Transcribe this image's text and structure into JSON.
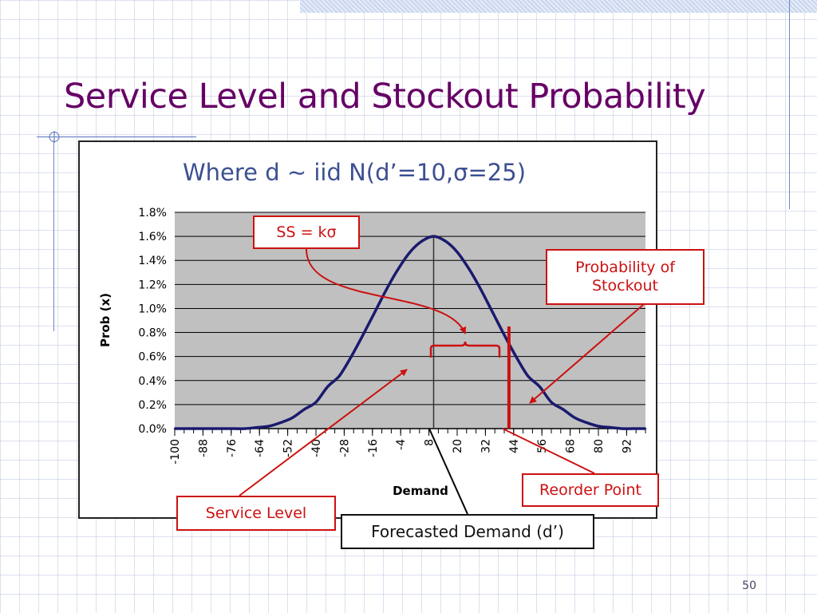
{
  "slide": {
    "title": "Service Level and Stockout Probability",
    "page_number": "50"
  },
  "colors": {
    "title": "#660066",
    "curve": "#1a1a6e",
    "plot_background": "#c0c0c0",
    "callout": "#cc1111",
    "subtitle": "#3d4f91"
  },
  "chart_data": {
    "type": "line",
    "title": "Where d ~ iid N(d’=10,σ=25)",
    "xlabel": "Demand",
    "ylabel": "Prob (x)",
    "distribution": {
      "family": "normal",
      "mean": 10,
      "sd": 25
    },
    "x_tick_labels": [
      "-100",
      "-88",
      "-76",
      "-64",
      "-52",
      "-40",
      "-28",
      "-16",
      "-4",
      "8",
      "20",
      "32",
      "44",
      "56",
      "68",
      "80",
      "92"
    ],
    "y_tick_labels": [
      "1.8%",
      "1.6%",
      "1.4%",
      "1.2%",
      "1.0%",
      "0.8%",
      "0.6%",
      "0.4%",
      "0.2%",
      "0.0%"
    ],
    "xlim": [
      -100,
      100
    ],
    "ylim": [
      0,
      0.018
    ],
    "grid": "horizontal",
    "forecast_x": 10,
    "reorder_point_x": 42,
    "series": [
      {
        "name": "Prob (x)",
        "x": [
          -100,
          -95,
          -90,
          -85,
          -80,
          -75,
          -70,
          -65,
          -60,
          -55,
          -50,
          -45,
          -40,
          -35,
          -30,
          -25,
          -20,
          -15,
          -10,
          -5,
          0,
          5,
          10,
          15,
          20,
          25,
          30,
          35,
          40,
          45,
          50,
          55,
          60,
          65,
          70,
          75,
          80,
          85,
          90,
          95,
          100
        ],
        "values": [
          0.0,
          0.0,
          0.0,
          0.0,
          0.0,
          0.0,
          0.0,
          0.0001,
          0.0002,
          0.0005,
          0.0009,
          0.0016,
          0.0022,
          0.0035,
          0.0044,
          0.006,
          0.0078,
          0.0097,
          0.0116,
          0.0133,
          0.0147,
          0.0156,
          0.016,
          0.0156,
          0.0147,
          0.0133,
          0.0116,
          0.0097,
          0.0078,
          0.006,
          0.0044,
          0.0035,
          0.0022,
          0.0016,
          0.0009,
          0.0005,
          0.0002,
          0.0001,
          0.0,
          0.0,
          0.0
        ]
      }
    ]
  },
  "annotations": {
    "safety_stock": "SS = kσ",
    "stockout_line1": "Probability of",
    "stockout_line2": "Stockout",
    "reorder_point": "Reorder Point",
    "service_level": "Service Level",
    "forecast": "Forecasted Demand (d’)"
  }
}
